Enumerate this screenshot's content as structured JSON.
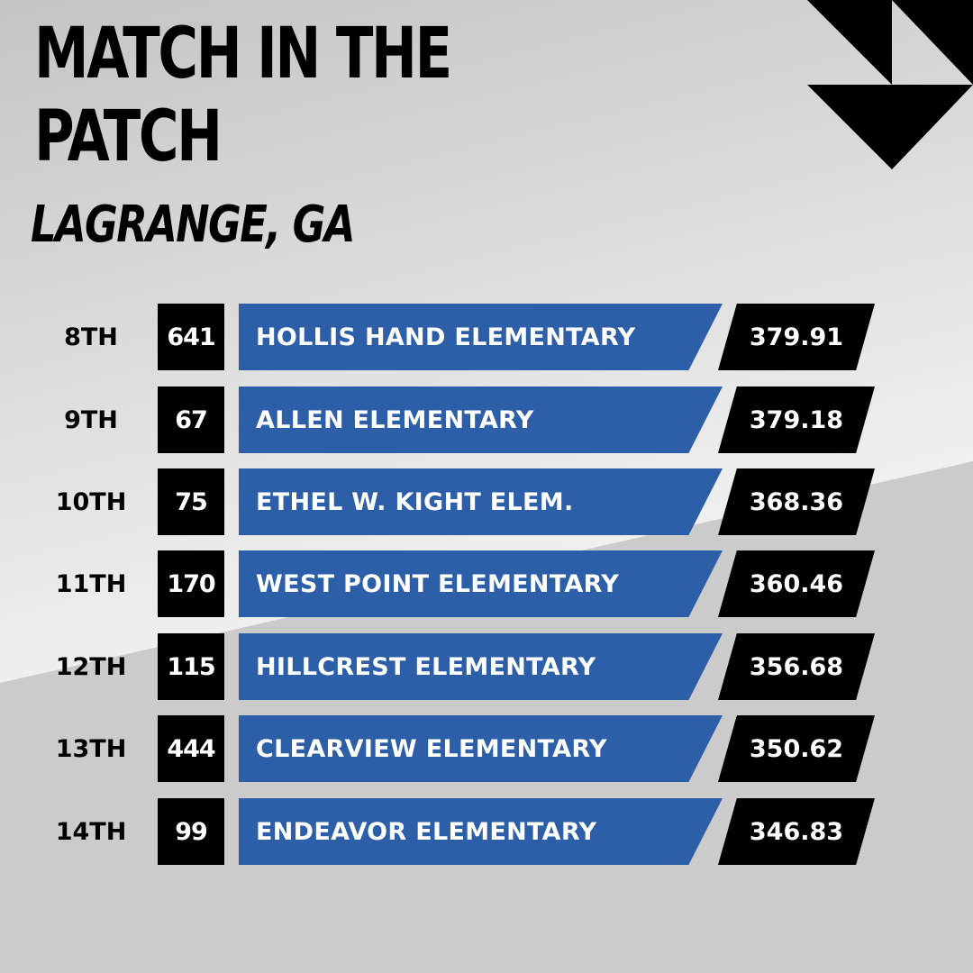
{
  "header": {
    "title_line1": "MATCH IN THE",
    "title_line2": "PATCH",
    "location": "LAGRANGE, GA"
  },
  "colors": {
    "bar_blue": "#2c5fa8",
    "badge_black": "#000000",
    "bg_gray": "#cbcbcb",
    "bg_light": "#f2f2f2"
  },
  "standings": [
    {
      "place": "8TH",
      "number": "641",
      "school": "HOLLIS HAND ELEMENTARY",
      "score": "379.91"
    },
    {
      "place": "9TH",
      "number": "67",
      "school": "ALLEN ELEMENTARY",
      "score": "379.18"
    },
    {
      "place": "10TH",
      "number": "75",
      "school": "ETHEL W. KIGHT ELEM.",
      "score": "368.36"
    },
    {
      "place": "11TH",
      "number": "170",
      "school": "WEST POINT ELEMENTARY",
      "score": "360.46"
    },
    {
      "place": "12TH",
      "number": "115",
      "school": "HILLCREST ELEMENTARY",
      "score": "356.68"
    },
    {
      "place": "13TH",
      "number": "444",
      "school": "CLEARVIEW ELEMENTARY",
      "score": "350.62"
    },
    {
      "place": "14TH",
      "number": "99",
      "school": "ENDEAVOR ELEMENTARY",
      "score": "346.83"
    }
  ]
}
